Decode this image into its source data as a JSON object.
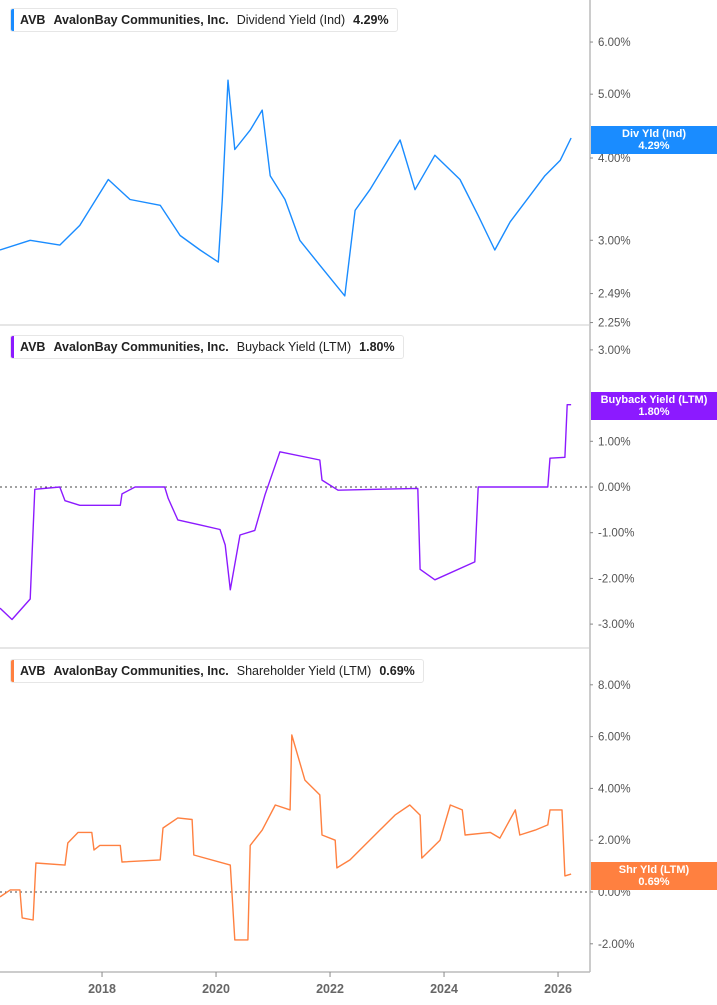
{
  "colors": {
    "dividend": "#1a8cff",
    "buyback": "#8c1aff",
    "shareholder": "#ff8040"
  },
  "chart_data": [
    {
      "type": "line",
      "ticker": "AVB",
      "company": "AvalonBay Communities, Inc.",
      "metric": "Dividend Yield (Ind)",
      "current": "4.29%",
      "tag_label": "Div Yld (Ind)",
      "tag_value": "4.29%",
      "yscale": "log",
      "ylim": [
        2.25,
        6.8
      ],
      "yticks": [
        "6.00%",
        "5.00%",
        "4.00%",
        "3.00%",
        "2.49%",
        "2.25%"
      ],
      "ytick_values": [
        6,
        5,
        4,
        3,
        2.49,
        2.25
      ],
      "points": [
        [
          2016.21,
          2.9
        ],
        [
          2016.74,
          3.0
        ],
        [
          2017.26,
          2.95
        ],
        [
          2017.61,
          3.16
        ],
        [
          2018.11,
          3.71
        ],
        [
          2018.49,
          3.46
        ],
        [
          2019.02,
          3.39
        ],
        [
          2019.37,
          3.05
        ],
        [
          2019.72,
          2.9
        ],
        [
          2020.04,
          2.78
        ],
        [
          2020.11,
          3.46
        ],
        [
          2020.21,
          5.25
        ],
        [
          2020.33,
          4.12
        ],
        [
          2020.6,
          4.41
        ],
        [
          2020.81,
          4.73
        ],
        [
          2020.95,
          3.76
        ],
        [
          2021.21,
          3.46
        ],
        [
          2021.47,
          3.0
        ],
        [
          2021.82,
          2.75
        ],
        [
          2022.26,
          2.47
        ],
        [
          2022.44,
          3.33
        ],
        [
          2022.7,
          3.58
        ],
        [
          2022.96,
          3.9
        ],
        [
          2023.23,
          4.26
        ],
        [
          2023.49,
          3.58
        ],
        [
          2023.84,
          4.04
        ],
        [
          2024.28,
          3.71
        ],
        [
          2024.6,
          3.27
        ],
        [
          2024.89,
          2.9
        ],
        [
          2025.16,
          3.2
        ],
        [
          2025.51,
          3.51
        ],
        [
          2025.77,
          3.76
        ],
        [
          2026.04,
          3.97
        ],
        [
          2026.23,
          4.29
        ]
      ]
    },
    {
      "type": "line",
      "ticker": "AVB",
      "company": "AvalonBay Communities, Inc.",
      "metric": "Buyback Yield (LTM)",
      "current": "1.80%",
      "tag_label": "Buyback Yield (LTM)",
      "tag_value": "1.80%",
      "yscale": "linear",
      "ylim": [
        -3.3,
        3.0
      ],
      "zero_line": true,
      "yticks": [
        "3.00%",
        "1.00%",
        "0.00%",
        "-1.00%",
        "-2.00%",
        "-3.00%"
      ],
      "ytick_values": [
        3,
        1,
        0,
        -1,
        -2,
        -3
      ],
      "points": [
        [
          2016.21,
          -2.65
        ],
        [
          2016.42,
          -2.9
        ],
        [
          2016.74,
          -2.45
        ],
        [
          2016.82,
          -0.05
        ],
        [
          2017.26,
          0
        ],
        [
          2017.35,
          -0.3
        ],
        [
          2017.61,
          -0.4
        ],
        [
          2018.32,
          -0.4
        ],
        [
          2018.35,
          -0.15
        ],
        [
          2018.58,
          0
        ],
        [
          2019.1,
          0
        ],
        [
          2019.16,
          -0.25
        ],
        [
          2019.33,
          -0.72
        ],
        [
          2019.72,
          -0.83
        ],
        [
          2020.07,
          -0.93
        ],
        [
          2020.16,
          -1.27
        ],
        [
          2020.25,
          -2.25
        ],
        [
          2020.42,
          -1.05
        ],
        [
          2020.68,
          -0.95
        ],
        [
          2020.86,
          -0.17
        ],
        [
          2021.12,
          0.77
        ],
        [
          2021.82,
          0.59
        ],
        [
          2021.86,
          0.15
        ],
        [
          2022.14,
          -0.07
        ],
        [
          2023.54,
          -0.03
        ],
        [
          2023.58,
          -1.8
        ],
        [
          2023.84,
          -2.03
        ],
        [
          2024.54,
          -1.64
        ],
        [
          2024.6,
          0
        ],
        [
          2025.82,
          0
        ],
        [
          2025.86,
          0.63
        ],
        [
          2026.12,
          0.65
        ],
        [
          2026.16,
          1.8
        ],
        [
          2026.23,
          1.8
        ]
      ]
    },
    {
      "type": "line",
      "ticker": "AVB",
      "company": "AvalonBay Communities, Inc.",
      "metric": "Shareholder Yield (LTM)",
      "current": "0.69%",
      "tag_label": "Shr Yld (LTM)",
      "tag_value": "0.69%",
      "yscale": "linear",
      "ylim": [
        -2.8,
        8.8
      ],
      "zero_line": true,
      "yticks": [
        "8.00%",
        "6.00%",
        "4.00%",
        "2.00%",
        "0.00%",
        "-2.00%"
      ],
      "ytick_values": [
        8,
        6,
        4,
        2,
        0,
        -2
      ],
      "points": [
        [
          2016.21,
          -0.19
        ],
        [
          2016.39,
          0.08
        ],
        [
          2016.56,
          0.08
        ],
        [
          2016.6,
          -1.0
        ],
        [
          2016.79,
          -1.08
        ],
        [
          2016.84,
          1.12
        ],
        [
          2017.35,
          1.04
        ],
        [
          2017.4,
          1.89
        ],
        [
          2017.58,
          2.3
        ],
        [
          2017.82,
          2.3
        ],
        [
          2017.86,
          1.62
        ],
        [
          2017.96,
          1.8
        ],
        [
          2018.32,
          1.8
        ],
        [
          2018.35,
          1.16
        ],
        [
          2019.02,
          1.24
        ],
        [
          2019.07,
          2.47
        ],
        [
          2019.33,
          2.86
        ],
        [
          2019.58,
          2.8
        ],
        [
          2019.61,
          1.43
        ],
        [
          2020.25,
          1.04
        ],
        [
          2020.33,
          -1.85
        ],
        [
          2020.56,
          -1.85
        ],
        [
          2020.6,
          1.8
        ],
        [
          2020.81,
          2.39
        ],
        [
          2021.04,
          3.36
        ],
        [
          2021.3,
          3.17
        ],
        [
          2021.33,
          6.06
        ],
        [
          2021.56,
          4.32
        ],
        [
          2021.82,
          3.75
        ],
        [
          2021.86,
          2.2
        ],
        [
          2022.09,
          2.0
        ],
        [
          2022.12,
          0.93
        ],
        [
          2022.35,
          1.24
        ],
        [
          2022.88,
          2.4
        ],
        [
          2023.14,
          2.97
        ],
        [
          2023.4,
          3.36
        ],
        [
          2023.58,
          2.97
        ],
        [
          2023.61,
          1.31
        ],
        [
          2023.93,
          2.0
        ],
        [
          2024.11,
          3.36
        ],
        [
          2024.32,
          3.17
        ],
        [
          2024.37,
          2.2
        ],
        [
          2024.81,
          2.3
        ],
        [
          2024.98,
          2.08
        ],
        [
          2025.25,
          3.17
        ],
        [
          2025.33,
          2.2
        ],
        [
          2025.6,
          2.39
        ],
        [
          2025.82,
          2.59
        ],
        [
          2025.86,
          3.17
        ],
        [
          2026.07,
          3.17
        ],
        [
          2026.12,
          0.62
        ],
        [
          2026.23,
          0.69
        ]
      ]
    }
  ],
  "x_axis": {
    "ticks": [
      "2018",
      "2020",
      "2022",
      "2024",
      "2026"
    ],
    "tick_values": [
      2018,
      2020,
      2022,
      2024,
      2026
    ]
  }
}
